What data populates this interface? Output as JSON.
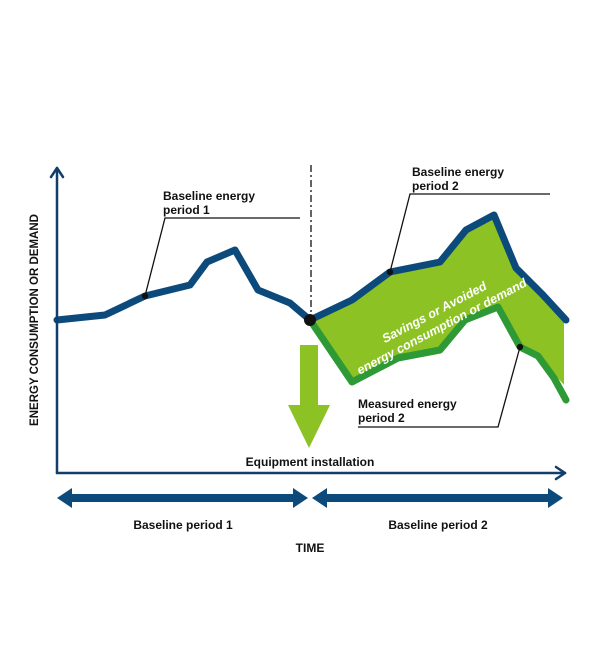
{
  "axes": {
    "y_label": "ENERGY CONSUMPTION OR DEMAND",
    "x_label": "TIME"
  },
  "labels": {
    "baseline_period1_line1": "Baseline energy",
    "baseline_period1_line2": "period 1",
    "baseline_period2_line1": "Baseline energy",
    "baseline_period2_line2": "period 2",
    "measured_period2_line1": "Measured energy",
    "measured_period2_line2": "period 2",
    "savings_line1": "Savings or Avoided",
    "savings_line2": "energy consumption or demand",
    "equipment_installation": "Equipment installation"
  },
  "periods": {
    "period1": "Baseline period 1",
    "period2": "Baseline period 2"
  },
  "colors": {
    "baseline_line": "#0d4a7c",
    "measured_line": "#2e9a35",
    "savings_fill": "#8cc224",
    "arrow_fill": "#8cc224",
    "axis": "#123f6a",
    "period_arrow": "#0d4a7c"
  }
}
